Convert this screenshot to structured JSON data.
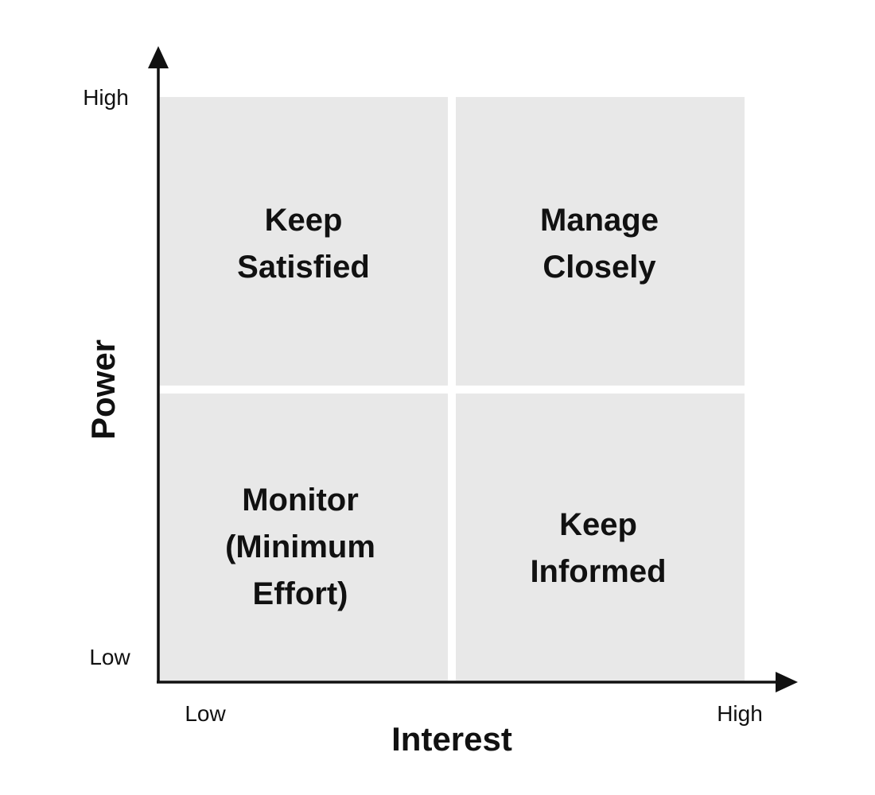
{
  "axes": {
    "y": {
      "title": "Power",
      "low_label": "Low",
      "high_label": "High"
    },
    "x": {
      "title": "Interest",
      "low_label": "Low",
      "high_label": "High"
    }
  },
  "quadrants": {
    "top_left": {
      "lines": [
        "Keep",
        "Satisfied"
      ]
    },
    "top_right": {
      "lines": [
        "Manage",
        "Closely"
      ]
    },
    "bottom_left": {
      "lines": [
        "Monitor",
        "(Minimum",
        "Effort)"
      ]
    },
    "bottom_right": {
      "lines": [
        "Keep",
        "Informed"
      ]
    }
  },
  "colors": {
    "quadrant_fill": "#e8e8e8",
    "axis": "#111111"
  }
}
